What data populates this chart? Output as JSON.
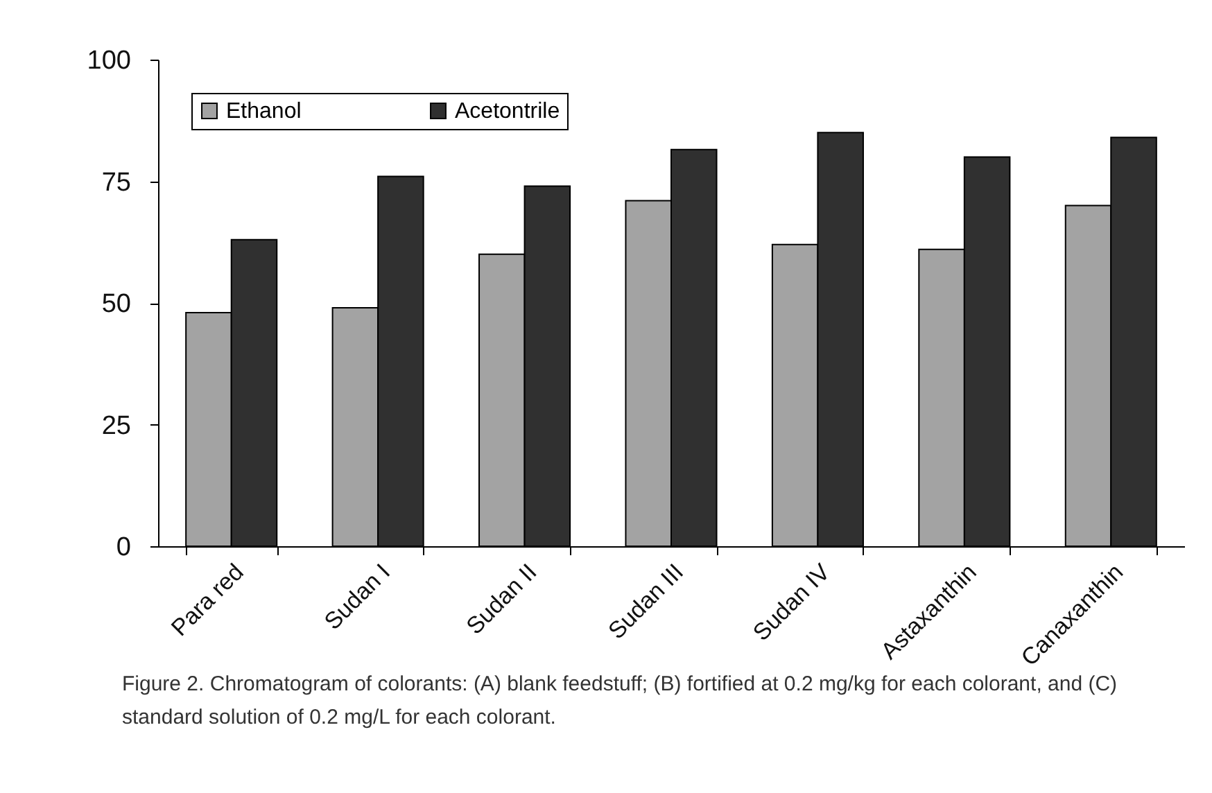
{
  "chart_data": {
    "type": "bar",
    "categories": [
      "Para red",
      "Sudan I",
      "Sudan II",
      "Sudan III",
      "Sudan IV",
      "Astaxanthin",
      "Canaxanthin"
    ],
    "series": [
      {
        "name": "Ethanol",
        "color": "#a3a3a3",
        "values": [
          48,
          49,
          60,
          71,
          62,
          61,
          70
        ]
      },
      {
        "name": "Acetontrile",
        "color": "#303030",
        "values": [
          63,
          76,
          74,
          81.5,
          85,
          80,
          84
        ]
      }
    ],
    "ylim": [
      0,
      100
    ],
    "yticks": [
      0,
      25,
      50,
      75,
      100
    ],
    "grid": false,
    "legend": "top left",
    "annotations": [
      "Figure 2. Chromatogram of colorants: (A) blank feedstuff; (B) fortified at 0.2 mg/kg for each colorant, and (C) standard solution of 0.2 mg/L for each colorant."
    ]
  }
}
